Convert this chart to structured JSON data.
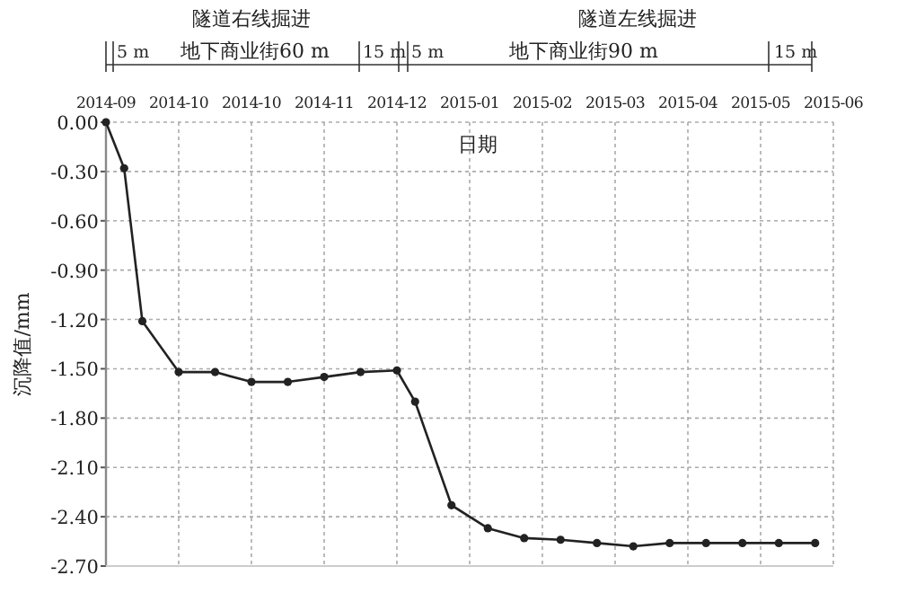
{
  "chart_data": {
    "type": "line",
    "xlabel": "日期",
    "ylabel": "沉降值/mm",
    "annotations": [
      "隧道右线掘进",
      "隧道左线掘进",
      "5 m",
      "地下商业街60 m",
      "15 m",
      "5 m",
      "地下商业街90 m",
      "15 m"
    ],
    "categories": [
      "2014-09",
      null,
      null,
      null,
      "2014-10",
      null,
      null,
      null,
      "2014-10",
      null,
      null,
      null,
      "2014-11",
      null,
      null,
      null,
      "2014-12",
      null,
      null,
      null,
      "2015-01",
      null,
      null,
      null,
      "2015-02",
      null,
      null,
      null,
      "2015-03",
      null,
      null,
      null,
      "2015-04",
      null,
      null,
      null,
      "2015-05",
      null,
      null,
      null,
      "2015-06"
    ],
    "series": [
      {
        "color": "#222222",
        "values": [
          0,
          -0.28,
          -1.21,
          null,
          -1.52,
          null,
          -1.52,
          null,
          -1.58,
          null,
          -1.58,
          null,
          -1.55,
          null,
          -1.52,
          null,
          -1.51,
          -1.7,
          null,
          -2.33,
          null,
          -2.47,
          null,
          -2.53,
          null,
          -2.54,
          null,
          -2.56,
          null,
          -2.58,
          null,
          -2.56,
          null,
          -2.56,
          null,
          -2.56,
          null,
          -2.56,
          null,
          -2.56,
          null
        ]
      }
    ],
    "ylim": [
      -2.7,
      0
    ],
    "yticks": [
      {
        "value": 0,
        "label": "0.00"
      },
      {
        "value": -0.3,
        "label": "-0.30"
      },
      {
        "value": -0.6,
        "label": "-0.60"
      },
      {
        "value": -0.9,
        "label": "-0.90"
      },
      {
        "value": -1.2,
        "label": "-1.20"
      },
      {
        "value": -1.5,
        "label": "-1.50"
      },
      {
        "value": -1.8,
        "label": "-1.80"
      },
      {
        "value": -2.1,
        "label": "-2.10"
      },
      {
        "value": -2.4,
        "label": "-2.40"
      },
      {
        "value": -2.7,
        "label": "-2.70"
      }
    ],
    "grid": true,
    "marker": "circle",
    "line_style": "solid"
  }
}
